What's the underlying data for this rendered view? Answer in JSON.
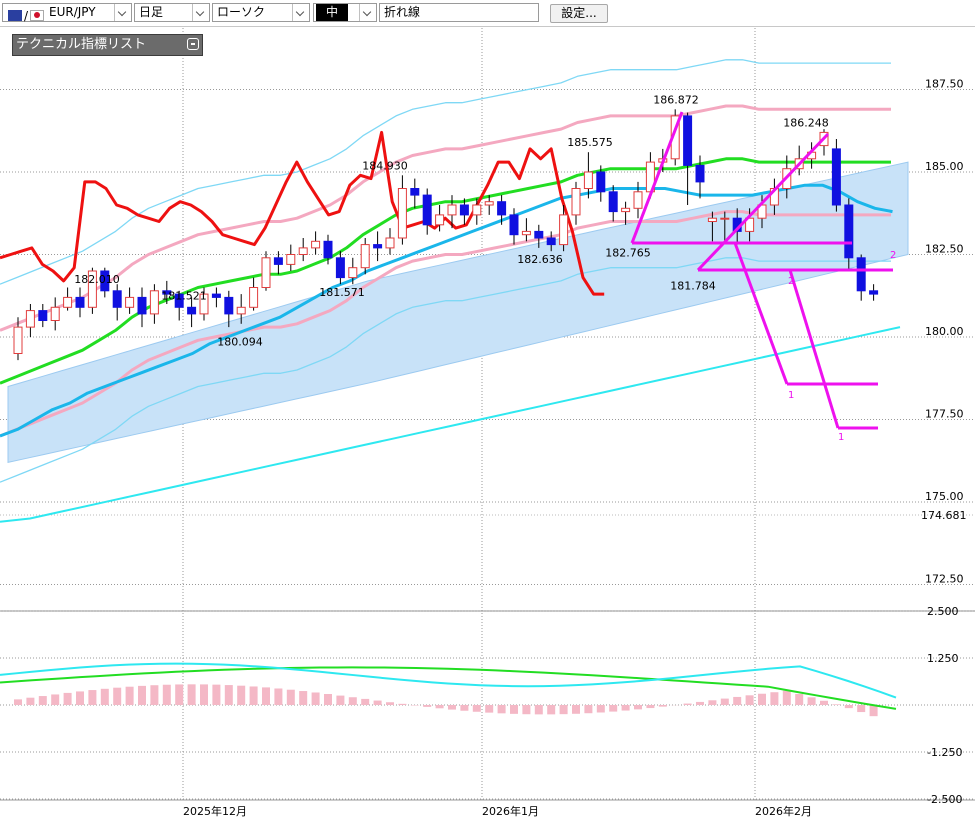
{
  "toolbar": {
    "symbol": "EUR/JPY",
    "flag_separator": "/",
    "timeframe": "日足",
    "chart_type": "ローソク",
    "mid_label": "中",
    "line_type": "折れ線",
    "settings_label": "設定..."
  },
  "indicator_panel": {
    "label": "テクニカル指標リスト"
  },
  "colors": {
    "bull_candle": "#e23c3c",
    "bear_candle": "#1010e0",
    "ma_green": "#22dd22",
    "ma_blue": "#1ab6ea",
    "ma_cyan": "#2ee8f0",
    "ma_red": "#ee1111",
    "bollinger_outer": "#7fd8f5",
    "bollinger_pink": "#f4a8c0",
    "ichimoku_cloud": "#c8e2f8",
    "drawing_magenta": "#ee11ee",
    "macd_hist": "#f4b8c6"
  },
  "chart_data": {
    "type": "line",
    "main_y_ticks": [
      "187.50",
      "185.00",
      "182.50",
      "180.00",
      "177.50",
      "175.00",
      "172.50"
    ],
    "current_price_label": "174.681",
    "sub_y_ticks": [
      "2.500",
      "1.250",
      "-1.250",
      "-2.500"
    ],
    "x_labels": [
      "2025年12月",
      "2026年1月",
      "2026年2月"
    ],
    "price_annotations": [
      {
        "text": "182.010",
        "price": 182.0
      },
      {
        "text": "181.521",
        "price": 181.5
      },
      {
        "text": "181.571",
        "price": 181.6
      },
      {
        "text": "180.094",
        "price": 180.1
      },
      {
        "text": "184.930",
        "price": 184.9
      },
      {
        "text": "185.575",
        "price": 185.6
      },
      {
        "text": "182.636",
        "price": 182.6
      },
      {
        "text": "186.872",
        "price": 186.9
      },
      {
        "text": "182.765",
        "price": 182.8
      },
      {
        "text": "181.784",
        "price": 181.8
      },
      {
        "text": "186.248",
        "price": 186.2
      }
    ],
    "drawing_labels": [
      "2",
      "2",
      "1",
      "1"
    ],
    "candles": [
      [
        179.5,
        180.3,
        179.3,
        180.6
      ],
      [
        180.3,
        180.8,
        180.0,
        181.0
      ],
      [
        180.8,
        180.5,
        180.3,
        181.0
      ],
      [
        180.5,
        180.9,
        180.2,
        181.2
      ],
      [
        180.9,
        181.2,
        180.8,
        181.5
      ],
      [
        181.2,
        180.9,
        180.6,
        181.5
      ],
      [
        180.9,
        182.0,
        180.7,
        182.1
      ],
      [
        182.0,
        181.4,
        181.2,
        182.1
      ],
      [
        181.4,
        180.9,
        180.5,
        181.6
      ],
      [
        180.9,
        181.2,
        180.7,
        181.5
      ],
      [
        181.2,
        180.7,
        180.3,
        181.5
      ],
      [
        180.7,
        181.4,
        180.4,
        181.6
      ],
      [
        181.4,
        181.3,
        181.0,
        181.7
      ],
      [
        181.3,
        180.9,
        180.5,
        181.4
      ],
      [
        180.9,
        180.7,
        180.3,
        181.2
      ],
      [
        180.7,
        181.3,
        180.5,
        181.5
      ],
      [
        181.3,
        181.2,
        180.9,
        181.5
      ],
      [
        181.2,
        180.7,
        180.3,
        181.4
      ],
      [
        180.7,
        180.9,
        180.4,
        181.3
      ],
      [
        180.9,
        181.5,
        180.8,
        181.8
      ],
      [
        181.5,
        182.4,
        181.4,
        182.6
      ],
      [
        182.4,
        182.2,
        181.9,
        182.6
      ],
      [
        182.2,
        182.5,
        182.0,
        182.8
      ],
      [
        182.5,
        182.7,
        182.3,
        183.0
      ],
      [
        182.7,
        182.9,
        182.5,
        183.2
      ],
      [
        182.9,
        182.4,
        182.2,
        183.1
      ],
      [
        182.4,
        181.8,
        181.6,
        182.6
      ],
      [
        181.8,
        182.1,
        181.6,
        182.4
      ],
      [
        182.1,
        182.8,
        181.9,
        183.0
      ],
      [
        182.8,
        182.7,
        182.3,
        183.2
      ],
      [
        182.7,
        183.0,
        182.5,
        183.3
      ],
      [
        183.0,
        184.5,
        182.8,
        184.9
      ],
      [
        184.5,
        184.3,
        183.9,
        184.8
      ],
      [
        184.3,
        183.4,
        183.1,
        184.5
      ],
      [
        183.4,
        183.7,
        183.2,
        184.0
      ],
      [
        183.7,
        184.0,
        183.3,
        184.3
      ],
      [
        184.0,
        183.7,
        183.4,
        184.2
      ],
      [
        183.7,
        184.0,
        183.4,
        184.2
      ],
      [
        184.0,
        184.1,
        183.7,
        184.3
      ],
      [
        184.1,
        183.7,
        183.4,
        184.3
      ],
      [
        183.7,
        183.1,
        182.8,
        183.9
      ],
      [
        183.1,
        183.2,
        182.9,
        183.6
      ],
      [
        183.2,
        183.0,
        182.7,
        183.4
      ],
      [
        183.0,
        182.8,
        182.6,
        183.2
      ],
      [
        182.8,
        183.7,
        182.6,
        184.0
      ],
      [
        183.7,
        184.5,
        183.4,
        184.7
      ],
      [
        184.5,
        185.0,
        184.2,
        185.6
      ],
      [
        185.0,
        184.4,
        184.1,
        185.2
      ],
      [
        184.4,
        183.8,
        183.5,
        184.6
      ],
      [
        183.8,
        183.9,
        183.4,
        184.1
      ],
      [
        183.9,
        184.4,
        183.6,
        184.7
      ],
      [
        184.4,
        185.3,
        184.2,
        185.6
      ],
      [
        185.3,
        185.4,
        185.0,
        185.7
      ],
      [
        185.4,
        186.7,
        185.2,
        186.9
      ],
      [
        186.7,
        185.2,
        184.0,
        186.8
      ],
      [
        185.2,
        184.7,
        184.2,
        185.5
      ],
      [
        183.5,
        183.6,
        182.9,
        183.8
      ],
      [
        183.6,
        183.6,
        182.9,
        183.8
      ],
      [
        183.6,
        183.2,
        182.8,
        183.9
      ],
      [
        183.2,
        183.6,
        182.9,
        183.9
      ],
      [
        183.6,
        184.0,
        183.3,
        184.3
      ],
      [
        184.0,
        184.5,
        183.7,
        184.8
      ],
      [
        184.5,
        185.1,
        184.2,
        185.5
      ],
      [
        185.1,
        185.4,
        184.9,
        185.8
      ],
      [
        185.4,
        185.6,
        185.1,
        185.9
      ],
      [
        185.8,
        186.2,
        185.5,
        186.3
      ],
      [
        185.7,
        184.0,
        183.8,
        186.0
      ],
      [
        184.0,
        182.4,
        182.0,
        184.2
      ],
      [
        182.4,
        181.4,
        181.1,
        182.5
      ],
      [
        181.4,
        181.3,
        181.1,
        181.6
      ]
    ],
    "series": [
      {
        "values": [
          182.4,
          182.5,
          182.6,
          182.7,
          182.2,
          182.0,
          181.7,
          182.1,
          184.7,
          184.7,
          184.5,
          184.0,
          183.9,
          183.7,
          183.6,
          183.5,
          183.9,
          184.1,
          184.0,
          183.8,
          183.5,
          183.1,
          183.0,
          182.9,
          182.8,
          183.3,
          184.0,
          184.7,
          185.3,
          184.7,
          184.2,
          183.7,
          183.8,
          184.6,
          184.9,
          184.8,
          186.2,
          184.1,
          183.3,
          183.4,
          183.5,
          183.3,
          183.6,
          183.3,
          183.4,
          184.0,
          184.6,
          185.3,
          185.3,
          184.8,
          185.7,
          185.4,
          185.7,
          184.2,
          183.2,
          181.8,
          181.3,
          181.3
        ]
      },
      {
        "values": [
          178.6,
          178.8,
          179.0,
          179.2,
          179.4,
          179.6,
          179.9,
          180.2,
          180.6,
          180.9,
          181.1,
          181.3,
          181.5,
          181.6,
          181.7,
          181.8,
          181.9,
          181.9,
          182.0,
          182.2,
          182.4,
          182.7,
          183.1,
          183.4,
          183.7,
          183.9,
          184.0,
          184.1,
          184.1,
          184.2,
          184.3,
          184.4,
          184.5,
          184.6,
          184.7,
          184.9,
          185.0,
          185.1,
          185.1,
          185.1,
          185.1,
          185.1,
          185.2,
          185.3,
          185.4,
          185.4,
          185.3,
          185.3,
          185.3,
          185.3,
          185.3,
          185.3,
          185.3,
          185.3,
          185.3
        ]
      },
      {
        "values": [
          177.0,
          177.2,
          177.5,
          177.8,
          178.0,
          178.3,
          178.5,
          178.7,
          178.9,
          179.1,
          179.3,
          179.5,
          179.8,
          180.0,
          180.2,
          180.4,
          180.6,
          180.9,
          181.2,
          181.5,
          181.7,
          182.0,
          182.2,
          182.4,
          182.6,
          182.8,
          183.0,
          183.2,
          183.4,
          183.6,
          183.8,
          184.0,
          184.2,
          184.3,
          184.4,
          184.5,
          184.5,
          184.5,
          184.5,
          184.4,
          184.3,
          184.3,
          184.3,
          184.3,
          184.4,
          184.5,
          184.6,
          184.6,
          184.4,
          184.1,
          183.9,
          183.8
        ]
      },
      {
        "values": [
          174.4,
          174.5,
          174.7,
          174.9,
          175.1,
          175.3,
          175.5,
          175.7,
          175.9,
          176.1,
          176.3,
          176.5,
          176.7,
          176.9,
          177.1,
          177.3,
          177.5,
          177.7,
          177.9,
          178.1,
          178.3,
          178.5,
          178.7,
          178.9,
          179.1,
          179.3,
          179.5,
          179.7,
          179.9,
          180.1,
          180.3
        ]
      }
    ]
  }
}
